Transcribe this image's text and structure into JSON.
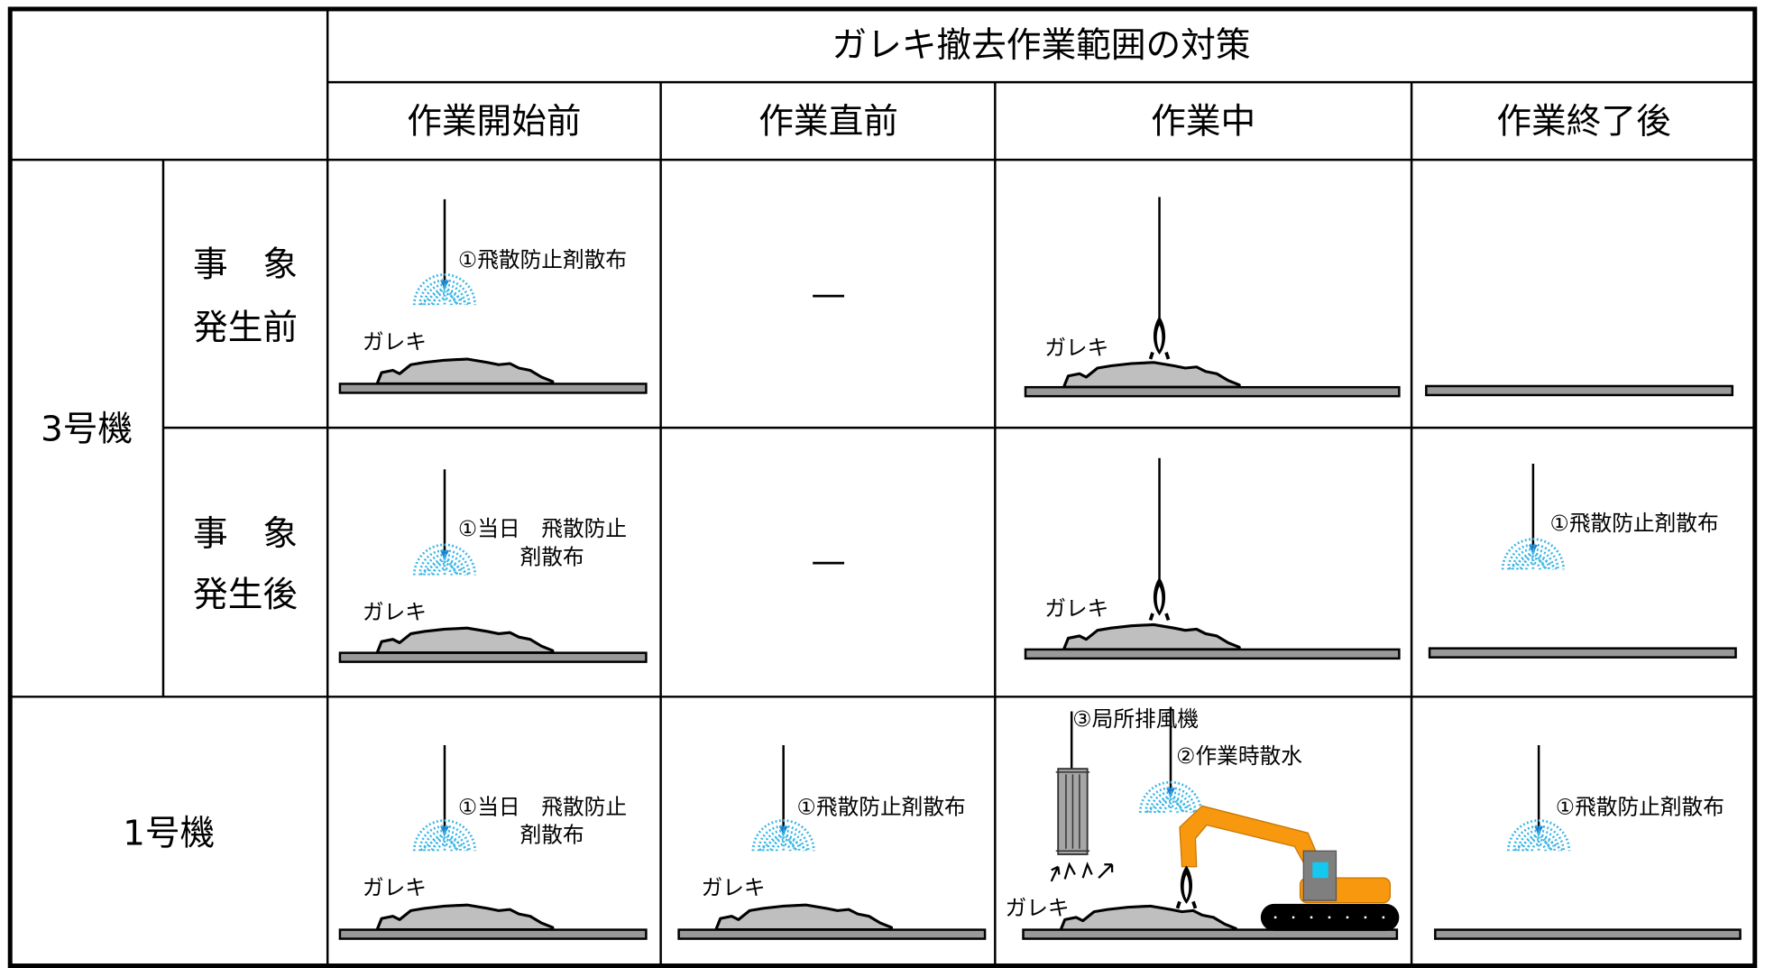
{
  "table": {
    "title": "ガレキ撤去作業範囲の対策",
    "columns": [
      "作業開始前",
      "作業直前",
      "作業中",
      "作業終了後"
    ],
    "units": [
      {
        "label": "3号機",
        "rows": [
          {
            "label": [
              "事　象",
              "発生前"
            ],
            "cells": [
              {
                "callout": [
                  "①飛散防止剤散布"
                ],
                "debris": "ガレキ"
              },
              {
                "text": "—"
              },
              {
                "debris": "ガレキ"
              }
            ]
          },
          {
            "label": [
              "事　象",
              "発生後"
            ],
            "cells": [
              {
                "callout": [
                  "①当日　飛散防止",
                  "剤散布"
                ],
                "debris": "ガレキ"
              },
              {
                "text": "—"
              },
              {
                "debris": "ガレキ"
              },
              {
                "callout": [
                  "①飛散防止剤散布"
                ]
              }
            ]
          }
        ]
      },
      {
        "label": "1号機",
        "cells": [
          {
            "callout": [
              "①当日　飛散防止",
              "剤散布"
            ],
            "debris": "ガレキ"
          },
          {
            "callout": [
              "①飛散防止剤散布"
            ],
            "debris": "ガレキ"
          },
          {
            "callout": [
              "③局所排風機",
              "②作業時散水"
            ],
            "debris": "ガレキ"
          },
          {
            "callout": [
              "①飛散防止剤散布"
            ]
          }
        ]
      }
    ]
  }
}
